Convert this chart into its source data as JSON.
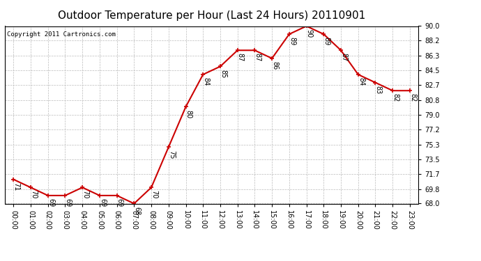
{
  "title": "Outdoor Temperature per Hour (Last 24 Hours) 20110901",
  "copyright": "Copyright 2011 Cartronics.com",
  "hours": [
    "00:00",
    "01:00",
    "02:00",
    "03:00",
    "04:00",
    "05:00",
    "06:00",
    "07:00",
    "08:00",
    "09:00",
    "10:00",
    "11:00",
    "12:00",
    "13:00",
    "14:00",
    "15:00",
    "16:00",
    "17:00",
    "18:00",
    "19:00",
    "20:00",
    "21:00",
    "22:00",
    "23:00"
  ],
  "temps": [
    71,
    70,
    69,
    69,
    70,
    69,
    69,
    68,
    70,
    75,
    80,
    84,
    85,
    87,
    87,
    86,
    89,
    90,
    89,
    87,
    84,
    83,
    82,
    82
  ],
  "line_color": "#cc0000",
  "marker_color": "#cc0000",
  "bg_color": "#ffffff",
  "grid_color": "#bbbbbb",
  "ylim_min": 68.0,
  "ylim_max": 90.0,
  "yticks": [
    68.0,
    69.8,
    71.7,
    73.5,
    75.3,
    77.2,
    79.0,
    80.8,
    82.7,
    84.5,
    86.3,
    88.2,
    90.0
  ],
  "title_fontsize": 11,
  "label_fontsize": 7,
  "tick_fontsize": 7,
  "copyright_fontsize": 6.5
}
